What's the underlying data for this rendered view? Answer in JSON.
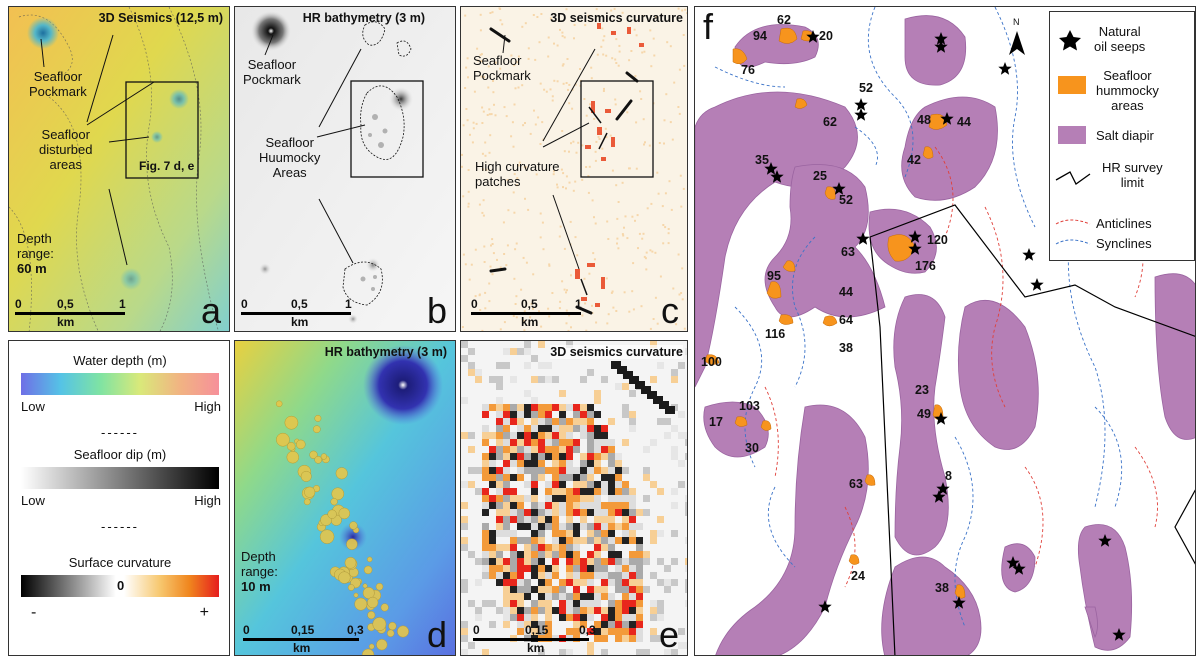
{
  "panels": {
    "a": {
      "letter": "a",
      "title": "3D Seismics (12,5 m)",
      "labels": [
        "Seafloor",
        "Pockmark",
        "Seafloor",
        "disturbed",
        "areas",
        "Fig. 7 d, e",
        "Depth",
        "range:",
        "60 m"
      ],
      "scale": {
        "ticks": [
          "0",
          "0,5",
          "1"
        ],
        "unit": "km"
      }
    },
    "b": {
      "letter": "b",
      "title": "HR bathymetry (3 m)",
      "labels": [
        "Seafloor",
        "Pockmark",
        "Seafloor",
        "Huumocky",
        "Areas"
      ],
      "scale": {
        "ticks": [
          "0",
          "0,5",
          "1"
        ],
        "unit": "km"
      }
    },
    "c": {
      "letter": "c",
      "title": "3D seismics curvature",
      "labels": [
        "Seafloor",
        "Pockmark",
        "High curvature",
        "patches"
      ],
      "scale": {
        "ticks": [
          "0",
          "0,5",
          "1"
        ],
        "unit": "km"
      }
    },
    "d": {
      "letter": "d",
      "title": "HR bathymetry (3 m)",
      "labels": [
        "Depth",
        "range:",
        "10 m"
      ],
      "scale": {
        "ticks": [
          "0",
          "0,15",
          "0,3"
        ],
        "unit": "km"
      }
    },
    "e": {
      "letter": "e",
      "title": "3D seismics curvature",
      "scale": {
        "ticks": [
          "0",
          "0,15",
          "0,3"
        ],
        "unit": "km"
      }
    },
    "f": {
      "letter": "f",
      "north": "N"
    }
  },
  "colorbars": {
    "water": {
      "title": "Water depth (m)",
      "low": "Low",
      "high": "High"
    },
    "dip": {
      "title": "Seafloor dip (m)",
      "low": "Low",
      "high": "High"
    },
    "curv": {
      "title": "Surface curvature",
      "zero": "0",
      "minus": "-",
      "plus": "+"
    },
    "dashes": "------"
  },
  "legend": {
    "seeps": [
      "Natural",
      "oil seeps"
    ],
    "hummocky": [
      "Seafloor",
      "hummocky",
      "areas"
    ],
    "salt": "Salt diapir",
    "survey": [
      "HR survey",
      "limit"
    ],
    "anticlines": "Anticlines",
    "synclines": "Synclines"
  },
  "map_labels": [
    "62",
    "94",
    "20",
    "76",
    "52",
    "62",
    "48",
    "44",
    "42",
    "35",
    "25",
    "52",
    "120",
    "176",
    "63",
    "95",
    "44",
    "64",
    "116",
    "38",
    "100",
    "23",
    "49",
    "103",
    "17",
    "30",
    "8",
    "63",
    "24",
    "38"
  ],
  "colors": {
    "salt": "#b57fb6",
    "hummocky": "#f7941d",
    "anticline": "#e0403a",
    "syncline": "#3b73c8"
  }
}
